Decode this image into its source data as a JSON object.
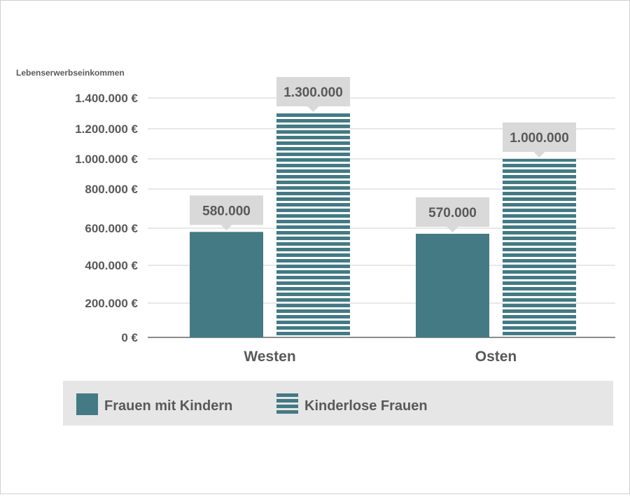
{
  "chart_data": {
    "type": "bar",
    "ylabel": "Lebenserwerbseinkommen",
    "categories": [
      "Westen",
      "Osten"
    ],
    "series": [
      {
        "name": "Frauen mit Kindern",
        "values": [
          580000,
          570000
        ],
        "labels": [
          "580.000",
          "570.000"
        ],
        "pattern": "solid"
      },
      {
        "name": "Kinderlose Frauen",
        "values": [
          1300000,
          1000000
        ],
        "labels": [
          "1.300.000",
          "1.000.000"
        ],
        "pattern": "striped"
      }
    ],
    "yticks": [
      0,
      200000,
      400000,
      600000,
      800000,
      1000000,
      1200000,
      1400000
    ],
    "ytick_labels": [
      "0 €",
      "200.000 €",
      "400.000 €",
      "600.000 €",
      "800.000 €",
      "1.000.000 €",
      "1.200.000 €",
      "1.400.000 €"
    ],
    "ylim": [
      0,
      1400000
    ],
    "grid": true,
    "legend": "bottom",
    "colors": {
      "bar": "#437a84",
      "label_box": "#d9d9d9",
      "legend_bg": "#e6e6e6",
      "text": "#595959"
    }
  }
}
